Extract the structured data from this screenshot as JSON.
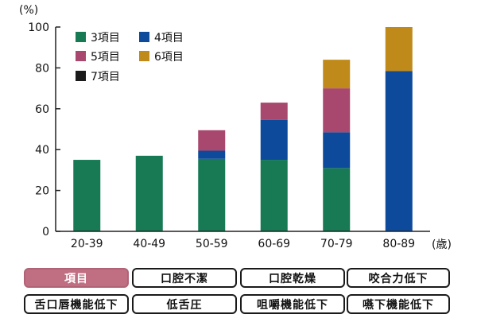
{
  "chart_data": {
    "type": "bar",
    "stacked": true,
    "title": "",
    "xlabel": "(歳)",
    "ylabel": "(%)",
    "ylim": [
      0,
      100
    ],
    "yticks": [
      0,
      20,
      40,
      60,
      80,
      100
    ],
    "grid": false,
    "legend_position": "top-left",
    "categories": [
      "20-39",
      "40-49",
      "50-59",
      "60-69",
      "70-79",
      "80-89"
    ],
    "series": [
      {
        "name": "3項目",
        "color": "#177a55",
        "values": [
          35,
          37,
          35.5,
          35,
          31,
          0
        ]
      },
      {
        "name": "4項目",
        "color": "#0d4a9b",
        "values": [
          0,
          0,
          4,
          19.5,
          17.5,
          78.5
        ]
      },
      {
        "name": "5項目",
        "color": "#a9486e",
        "values": [
          0,
          0,
          10,
          8.5,
          21.5,
          0
        ]
      },
      {
        "name": "6項目",
        "color": "#c08a1a",
        "values": [
          0,
          0,
          0,
          0,
          14,
          21.5
        ]
      },
      {
        "name": "7項目",
        "color": "#1a1a1a",
        "values": [
          0,
          0,
          0,
          0,
          0,
          0
        ]
      }
    ]
  },
  "tags": [
    {
      "label": "項目",
      "active": true
    },
    {
      "label": "口腔不潔",
      "active": false
    },
    {
      "label": "口腔乾燥",
      "active": false
    },
    {
      "label": "咬合力低下",
      "active": false
    },
    {
      "label": "舌口唇機能低下",
      "active": false
    },
    {
      "label": "低舌圧",
      "active": false
    },
    {
      "label": "咀嚼機能低下",
      "active": false
    },
    {
      "label": "嚥下機能低下",
      "active": false
    }
  ]
}
